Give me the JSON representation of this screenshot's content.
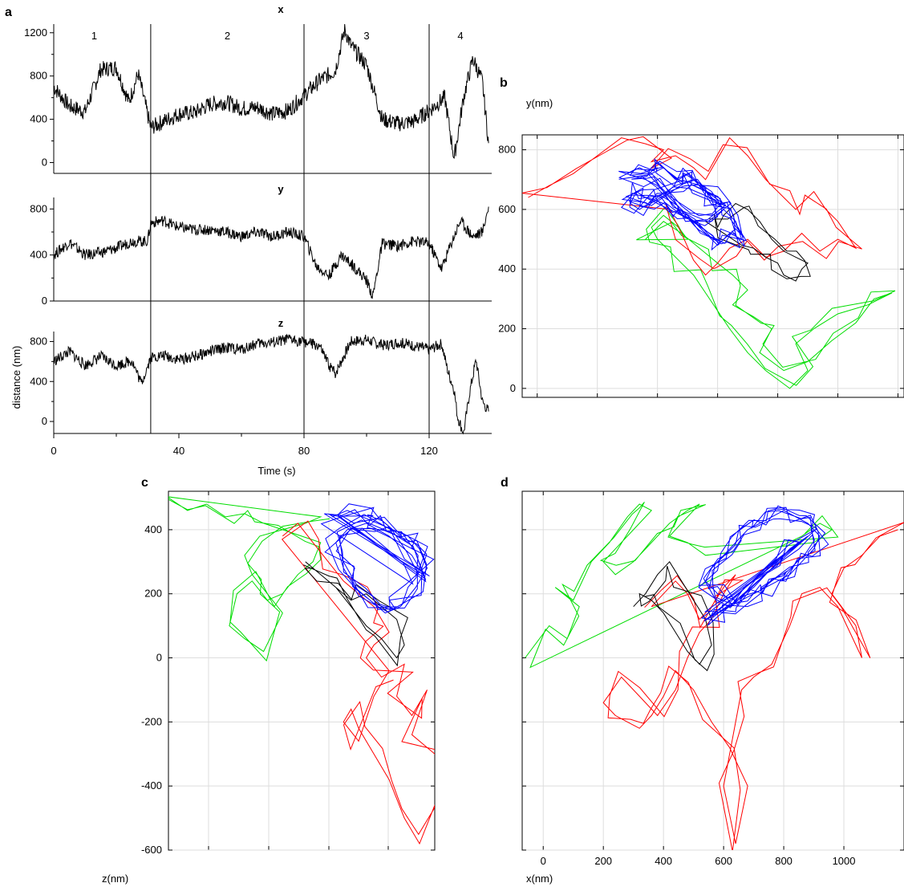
{
  "chart_data": [
    {
      "panel": "a",
      "type": "line",
      "xlabel": "Time (s)",
      "ylabel": "distance (nm)",
      "xlim": [
        0,
        140
      ],
      "x_ticks": [
        0,
        40,
        80,
        120
      ],
      "segment_boundaries": [
        31,
        80,
        120
      ],
      "segment_labels": [
        "1",
        "2",
        "3",
        "4"
      ],
      "subplots": [
        {
          "title": "x",
          "ylim": [
            -100,
            1280
          ],
          "y_ticks": [
            0,
            400,
            800,
            1200
          ],
          "time": [
            0,
            5,
            10,
            15,
            20,
            24,
            27,
            31,
            35,
            40,
            45,
            50,
            55,
            60,
            65,
            70,
            75,
            80,
            85,
            90,
            93,
            95,
            100,
            105,
            110,
            115,
            120,
            125,
            128,
            131,
            134,
            137,
            139
          ],
          "values": [
            700,
            520,
            470,
            860,
            880,
            560,
            820,
            320,
            380,
            450,
            460,
            540,
            560,
            500,
            510,
            450,
            480,
            620,
            760,
            850,
            1230,
            1080,
            900,
            400,
            360,
            380,
            480,
            600,
            40,
            600,
            960,
            750,
            180
          ]
        },
        {
          "title": "y",
          "ylim": [
            0,
            900
          ],
          "y_ticks": [
            0,
            400,
            800
          ],
          "time": [
            0,
            5,
            10,
            15,
            20,
            25,
            30,
            31,
            35,
            40,
            45,
            50,
            55,
            60,
            65,
            70,
            75,
            80,
            84,
            88,
            92,
            96,
            100,
            102,
            105,
            110,
            115,
            120,
            124,
            127,
            130,
            134,
            137,
            139
          ],
          "values": [
            400,
            510,
            400,
            420,
            460,
            520,
            520,
            680,
            700,
            640,
            620,
            620,
            600,
            560,
            600,
            560,
            600,
            560,
            300,
            220,
            400,
            300,
            180,
            40,
            500,
            480,
            520,
            500,
            280,
            500,
            700,
            560,
            600,
            820
          ]
        },
        {
          "title": "z",
          "ylim": [
            -120,
            900
          ],
          "y_ticks": [
            0,
            400,
            800
          ],
          "time": [
            0,
            5,
            10,
            15,
            20,
            25,
            28,
            31,
            35,
            40,
            45,
            50,
            55,
            60,
            65,
            70,
            75,
            80,
            85,
            88,
            90,
            95,
            100,
            105,
            110,
            115,
            120,
            124,
            126,
            128,
            129,
            131,
            133,
            135,
            137,
            139
          ],
          "values": [
            600,
            700,
            560,
            650,
            560,
            610,
            380,
            640,
            660,
            620,
            650,
            700,
            740,
            720,
            780,
            790,
            820,
            800,
            750,
            560,
            480,
            800,
            820,
            760,
            790,
            760,
            720,
            780,
            500,
            320,
            60,
            -120,
            300,
            620,
            200,
            100
          ]
        }
      ]
    },
    {
      "panel": "b",
      "type": "line",
      "xlabel": "",
      "ylabel": "y(nm)",
      "xlim": [
        -50,
        1220
      ],
      "ylim": [
        -30,
        850
      ],
      "x_ticks": [
        0,
        200,
        400,
        600,
        800,
        1000,
        1200
      ],
      "y_ticks": [
        0,
        200,
        400,
        600,
        800
      ],
      "show_x_tick_labels": false,
      "grid": true,
      "series": [
        {
          "color": "#00dd00",
          "x": [
            360,
            420,
            480,
            540,
            600,
            650,
            700,
            650,
            720,
            780,
            740,
            820,
            900,
            980,
            1060,
            1120,
            1180,
            1100,
            1000,
            920,
            860,
            900,
            840,
            760,
            700,
            640,
            600,
            560,
            520,
            480,
            440,
            400,
            380,
            420,
            470,
            500
          ],
          "y": [
            500,
            560,
            520,
            470,
            420,
            380,
            330,
            280,
            240,
            200,
            120,
            60,
            90,
            160,
            220,
            300,
            320,
            280,
            250,
            200,
            150,
            60,
            0,
            60,
            120,
            200,
            260,
            320,
            380,
            420,
            460,
            500,
            540,
            580,
            540,
            500
          ]
        },
        {
          "color": "#ff0000",
          "x": [
            -30,
            40,
            120,
            200,
            280,
            360,
            420,
            380,
            460,
            520,
            560,
            640,
            700,
            760,
            820,
            860,
            920,
            960,
            1000,
            1060,
            1000,
            940,
            880,
            820,
            760,
            700,
            640,
            600,
            560,
            520,
            480,
            440
          ],
          "y": [
            640,
            680,
            720,
            780,
            840,
            820,
            800,
            760,
            780,
            740,
            700,
            840,
            780,
            700,
            640,
            600,
            660,
            600,
            560,
            470,
            500,
            460,
            520,
            460,
            440,
            500,
            470,
            420,
            380,
            430,
            520,
            600
          ]
        },
        {
          "color": "#000000",
          "x": [
            560,
            620,
            680,
            720,
            760,
            800,
            820,
            860,
            880,
            900,
            860,
            820,
            780,
            740,
            700,
            660,
            620,
            600
          ],
          "y": [
            560,
            520,
            480,
            470,
            440,
            420,
            380,
            360,
            400,
            420,
            440,
            460,
            500,
            560,
            600,
            620,
            580,
            540
          ]
        },
        {
          "color": "#0000ff",
          "x": [
            300,
            340,
            380,
            420,
            460,
            500,
            540,
            580,
            620,
            660,
            680,
            640,
            600,
            560,
            520,
            480,
            440,
            400,
            360,
            330,
            310,
            340,
            400,
            460,
            520,
            580,
            620,
            580,
            520,
            460,
            400,
            360
          ],
          "y": [
            720,
            740,
            720,
            740,
            700,
            720,
            680,
            640,
            600,
            560,
            500,
            520,
            480,
            520,
            560,
            580,
            600,
            620,
            640,
            660,
            620,
            600,
            640,
            680,
            700,
            660,
            600,
            560,
            560,
            620,
            680,
            700
          ]
        }
      ]
    },
    {
      "panel": "c",
      "type": "line",
      "xlabel": "",
      "ylabel": "z(nm)",
      "ylim": [
        -600,
        520
      ],
      "y_ticks": [
        -600,
        -400,
        -200,
        0,
        200,
        400
      ],
      "x_ticks": [
        0,
        1,
        2,
        3,
        4
      ],
      "show_x_tick_labels": false,
      "grid": true,
      "series": [
        {
          "color": "#00dd00",
          "x": [
            0,
            50,
            100,
            150,
            200,
            250,
            300,
            350,
            400,
            380,
            340,
            300,
            260,
            220,
            180,
            160,
            200,
            250,
            300,
            260,
            220,
            200,
            240,
            300,
            360,
            400
          ],
          "y": [
            500,
            460,
            480,
            440,
            450,
            420,
            400,
            380,
            360,
            300,
            260,
            200,
            180,
            240,
            200,
            100,
            60,
            20,
            140,
            200,
            260,
            320,
            380,
            400,
            420,
            440
          ]
        },
        {
          "color": "#ff0000",
          "x": [
            300,
            340,
            380,
            420,
            460,
            500,
            540,
            560,
            580,
            540,
            520,
            560,
            620,
            600,
            640,
            680,
            640,
            700,
            740,
            700,
            660,
            620,
            580,
            540,
            500,
            480,
            460,
            500,
            540,
            580
          ],
          "y": [
            380,
            420,
            360,
            300,
            240,
            200,
            160,
            120,
            80,
            40,
            0,
            -60,
            -20,
            -120,
            -180,
            -100,
            -240,
            -300,
            -380,
            -460,
            -580,
            -500,
            -380,
            -300,
            -220,
            -160,
            -200,
            -260,
            -120,
            -40
          ]
        },
        {
          "color": "#000000",
          "x": [
            360,
            400,
            440,
            480,
            520,
            560,
            600,
            620,
            600,
            560,
            520,
            480,
            440,
            400,
            380
          ],
          "y": [
            300,
            260,
            220,
            180,
            200,
            160,
            120,
            40,
            0,
            60,
            100,
            160,
            220,
            260,
            280
          ]
        },
        {
          "color": "#0000ff",
          "x": [
            430,
            470,
            510,
            550,
            590,
            630,
            660,
            680,
            650,
            610,
            570,
            530,
            490,
            460,
            440,
            470,
            520,
            580,
            640,
            670
          ],
          "y": [
            440,
            460,
            440,
            420,
            400,
            380,
            340,
            280,
            220,
            160,
            140,
            180,
            220,
            280,
            360,
            400,
            420,
            380,
            320,
            260
          ]
        }
      ]
    },
    {
      "panel": "d",
      "type": "line",
      "xlabel": "x(nm)",
      "ylabel": "",
      "xlim": [
        -70,
        1200
      ],
      "ylim": [
        -600,
        520
      ],
      "x_ticks": [
        0,
        200,
        400,
        600,
        800,
        1000
      ],
      "y_ticks": [
        -600,
        -400,
        -200,
        0,
        200,
        400
      ],
      "show_y_tick_labels": false,
      "grid": true,
      "series": [
        {
          "color": "#00dd00",
          "x": [
            -60,
            20,
            80,
            120,
            40,
            100,
            160,
            220,
            280,
            320,
            360,
            300,
            240,
            200,
            240,
            300,
            360,
            420,
            480,
            520,
            460,
            420,
            480,
            540,
            900,
            960,
            920,
            860
          ],
          "y": [
            0,
            100,
            60,
            160,
            220,
            180,
            300,
            360,
            440,
            480,
            460,
            400,
            340,
            300,
            260,
            300,
            360,
            420,
            460,
            480,
            420,
            380,
            360,
            320,
            360,
            400,
            420,
            380
          ]
        },
        {
          "color": "#ff0000",
          "x": [
            1180,
            1120,
            1060,
            1000,
            960,
            1040,
            1060,
            980,
            920,
            860,
            820,
            760,
            700,
            660,
            640,
            620,
            600,
            640,
            680,
            620,
            560,
            500,
            440,
            400,
            360,
            320,
            280,
            240,
            200,
            260,
            320,
            380,
            440,
            480,
            520,
            560,
            600,
            640,
            600,
            560,
            520,
            480,
            440,
            400,
            360
          ],
          "y": [
            400,
            380,
            320,
            280,
            200,
            100,
            0,
            160,
            220,
            200,
            100,
            -20,
            -60,
            -100,
            -200,
            -300,
            -400,
            -580,
            -400,
            -280,
            -200,
            -100,
            -40,
            -120,
            -180,
            -220,
            -200,
            -180,
            -140,
            -60,
            -120,
            -180,
            -100,
            0,
            80,
            120,
            200,
            260,
            220,
            160,
            120,
            200,
            240,
            200,
            160
          ]
        },
        {
          "color": "#000000",
          "x": [
            300,
            340,
            380,
            420,
            460,
            500,
            540,
            560,
            520,
            480,
            440,
            400,
            360,
            320
          ],
          "y": [
            160,
            200,
            260,
            300,
            240,
            180,
            120,
            40,
            -20,
            20,
            80,
            140,
            180,
            200
          ]
        },
        {
          "color": "#0000ff",
          "x": [
            540,
            580,
            620,
            660,
            700,
            740,
            780,
            820,
            860,
            900,
            920,
            880,
            840,
            800,
            760,
            720,
            680,
            640,
            600,
            560,
            540,
            580,
            640,
            700,
            760,
            820,
            880
          ],
          "y": [
            120,
            140,
            160,
            180,
            200,
            220,
            240,
            260,
            300,
            340,
            380,
            420,
            440,
            460,
            440,
            420,
            400,
            360,
            320,
            280,
            240,
            200,
            180,
            220,
            280,
            340,
            380
          ]
        }
      ]
    }
  ],
  "panel_letters": [
    "a",
    "b",
    "c",
    "d"
  ]
}
